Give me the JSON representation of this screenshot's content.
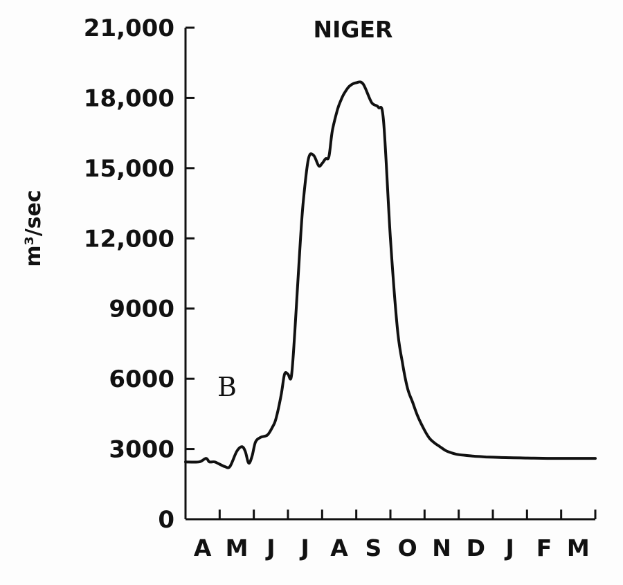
{
  "chart_data": {
    "type": "line",
    "title": "NIGER",
    "panel_label": "B",
    "ylabel": "m³/sec",
    "xlabel": "",
    "ylim": [
      0,
      21000
    ],
    "y_ticks": [
      0,
      3000,
      6000,
      9000,
      12000,
      15000,
      18000,
      21000
    ],
    "y_tick_labels": [
      "0",
      "3000",
      "6000",
      "9000",
      "12,000",
      "15,000",
      "18,000",
      "21,000"
    ],
    "x_tick_labels": [
      "A",
      "M",
      "J",
      "J",
      "A",
      "S",
      "O",
      "N",
      "D",
      "J",
      "F",
      "M"
    ],
    "grid": false,
    "x_range_months": [
      0,
      12
    ],
    "series": [
      {
        "x": [
          0.0,
          0.4,
          0.6,
          0.7,
          0.85,
          1.0,
          1.15,
          1.3,
          1.5,
          1.65,
          1.75,
          1.85,
          1.95,
          2.05,
          2.2,
          2.4,
          2.55,
          2.65,
          2.8,
          2.9,
          3.0,
          3.1,
          3.2,
          3.35,
          3.45,
          3.6,
          3.75,
          3.9,
          4.0,
          4.1,
          4.2,
          4.3,
          4.45,
          4.55,
          4.65,
          4.8,
          5.0,
          5.2,
          5.45,
          5.65,
          5.8,
          6.0,
          6.2,
          6.35,
          6.5,
          6.65,
          6.8,
          7.0,
          7.15,
          7.3,
          7.45,
          7.6,
          7.7,
          7.8,
          7.9,
          8.0,
          8.2,
          8.4,
          8.6,
          8.8,
          9.0,
          9.2,
          9.5,
          9.8,
          10.2,
          10.6,
          11.0,
          11.5,
          12.0
        ],
        "y": [
          2450,
          2450,
          2600,
          2450,
          2450,
          2350,
          2250,
          2250,
          2900,
          3100,
          2900,
          2400,
          2700,
          3300,
          3500,
          3600,
          3950,
          4300,
          5300,
          6200,
          6200,
          6100,
          8000,
          11600,
          13600,
          15400,
          15550,
          15100,
          15200,
          15400,
          15500,
          16600,
          17500,
          17900,
          18200,
          18500,
          18650,
          18600,
          17800,
          17600,
          17000,
          12000,
          8200,
          6700,
          5600,
          5000,
          4400,
          3800,
          3450,
          3250,
          3100,
          2950,
          2880,
          2830,
          2790,
          2760,
          2730,
          2700,
          2680,
          2660,
          2650,
          2640,
          2630,
          2620,
          2610,
          2600,
          2600,
          2600,
          2600
        ]
      }
    ]
  }
}
